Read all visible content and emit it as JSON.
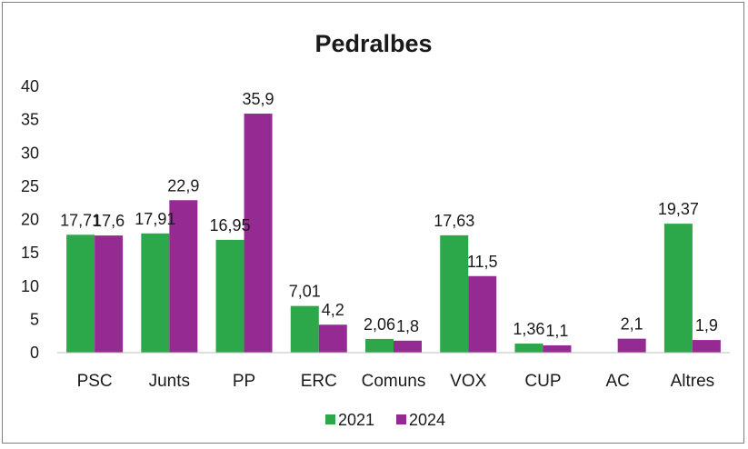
{
  "chart_data": {
    "type": "bar",
    "title": "Pedralbes",
    "categories": [
      "PSC",
      "Junts",
      "PP",
      "ERC",
      "Comuns",
      "VOX",
      "CUP",
      "AC",
      "Altres"
    ],
    "series": [
      {
        "name": "2021",
        "color": "#2ca74a",
        "values": [
          17.71,
          17.91,
          16.95,
          7.01,
          2.06,
          17.63,
          1.36,
          null,
          19.37
        ],
        "labels": [
          "17,71",
          "17,91",
          "16,95",
          "7,01",
          "2,06",
          "17,63",
          "1,36",
          "",
          "19,37"
        ]
      },
      {
        "name": "2024",
        "color": "#952a92",
        "values": [
          17.6,
          22.9,
          35.9,
          4.2,
          1.8,
          11.5,
          1.1,
          2.1,
          1.9
        ],
        "labels": [
          "17,6",
          "22,9",
          "35,9",
          "4,2",
          "1,8",
          "11,5",
          "1,1",
          "2,1",
          "1,9"
        ]
      }
    ],
    "ylim": [
      0,
      40
    ],
    "yticks": [
      0,
      5,
      10,
      15,
      20,
      25,
      30,
      35,
      40
    ],
    "xlabel": "",
    "ylabel": "",
    "grid": false,
    "legend_position": "bottom"
  }
}
